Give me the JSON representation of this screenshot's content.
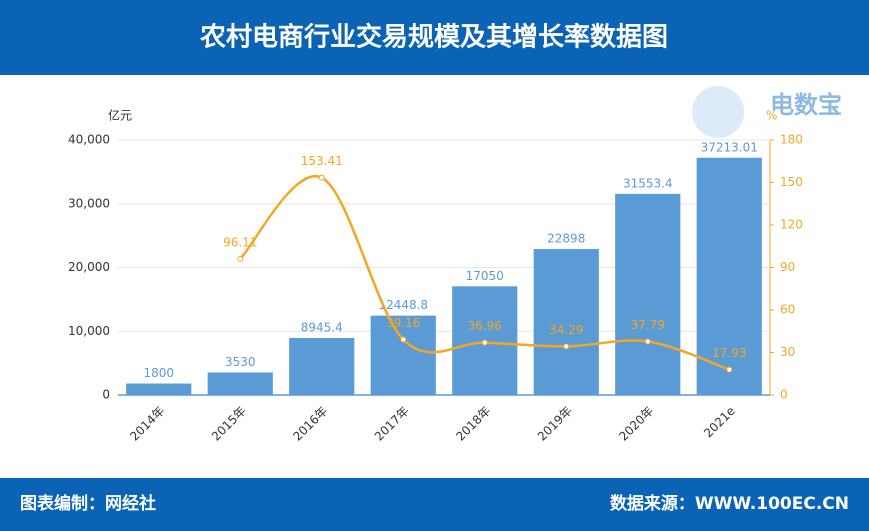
{
  "chart_data": {
    "type": "bar-line",
    "title": "农村电商行业交易规模及其增长率数据图",
    "y_unit": "亿元",
    "y2_unit": "%",
    "categories": [
      "2014年",
      "2015年",
      "2016年",
      "2017年",
      "2018年",
      "2019年",
      "2020年",
      "2021e"
    ],
    "series": [
      {
        "name": "交易规模",
        "type": "bar",
        "color": "#5b9bd5",
        "values": [
          1800,
          3530,
          8945.4,
          12448.8,
          17050,
          22898,
          31553.4,
          37213.01
        ]
      },
      {
        "name": "增长率",
        "type": "line",
        "axis": "y2",
        "color": "#f5a623",
        "values": [
          null,
          96.11,
          153.41,
          39.16,
          36.96,
          34.29,
          37.79,
          17.93
        ]
      }
    ],
    "ylim": [
      0,
      40000
    ],
    "yticks": [
      0,
      {
        "value": 10000,
        "label": "10,000"
      },
      {
        "value": 20000,
        "label": "20,000"
      },
      {
        "value": 30000,
        "label": "30,000"
      },
      {
        "value": 40000,
        "label": "40,000"
      }
    ],
    "y2lim": [
      0,
      180
    ],
    "y2ticks": [
      0,
      30,
      60,
      90,
      120,
      150,
      180
    ],
    "grid": true,
    "logo": "电数宝",
    "footer_left": "图表编制：网经社",
    "footer_right": "数据来源：WWW.100EC.CN"
  }
}
